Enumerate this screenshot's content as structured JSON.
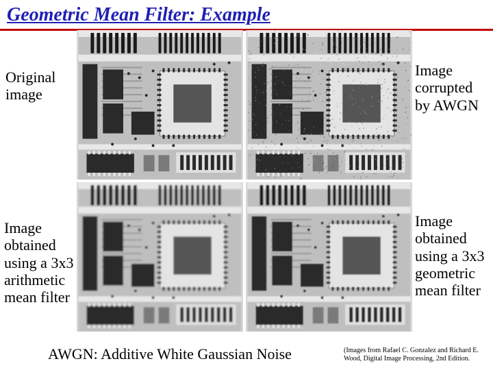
{
  "title": "Geometric Mean Filter: Example",
  "title_color": "#1f1fb5",
  "rule_color": "#c00000",
  "labels": {
    "tl": "Original image",
    "tr": "Image corrupted by AWGN",
    "bl": "Image obtained using a 3x3 arithmetic mean filter",
    "br": "Image obtained using a 3x3 geometric mean filter"
  },
  "footer": {
    "main": "AWGN: Additive White Gaussian Noise",
    "credit": "(Images from Rafael C. Gonzalez and Richard E. Wood, Digital Image Processing, 2nd Edition."
  },
  "images": {
    "background": "#d0d0d0",
    "board_base": "#bfbfbf",
    "dark": "#2a2a2a",
    "mid": "#7a7a7a",
    "light": "#e8e8e8",
    "chip_body": "#e4e4e4",
    "chip_cavity": "#555555",
    "connector_body": "#e0e0e0",
    "connector_pin": "#1a1a1a",
    "trace": "#9a9a9a",
    "noise_opacity_tr": 0.35,
    "blur_bl": 1.2,
    "blur_br": 0.8
  }
}
